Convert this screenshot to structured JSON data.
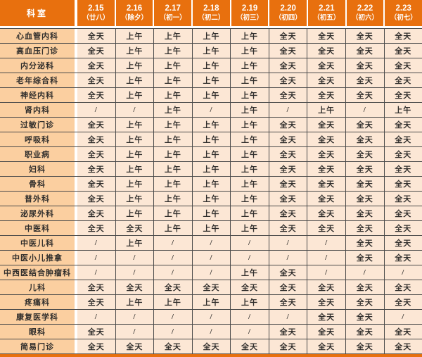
{
  "colors": {
    "header_bg": "#E8700E",
    "header_text": "#FFFFFF",
    "dept_bg": "#FBCFA0",
    "cell_bg": "#FCE7D5",
    "grid": "#4A4A4A",
    "text": "#302E2C"
  },
  "table": {
    "corner_header": "科室",
    "columns": [
      {
        "date": "2.15",
        "lunar": "（廿八）"
      },
      {
        "date": "2.16",
        "lunar": "（除夕）"
      },
      {
        "date": "2.17",
        "lunar": "（初一）"
      },
      {
        "date": "2.18",
        "lunar": "（初二）"
      },
      {
        "date": "2.19",
        "lunar": "（初三）"
      },
      {
        "date": "2.20",
        "lunar": "（初四）"
      },
      {
        "date": "2.21",
        "lunar": "（初五）"
      },
      {
        "date": "2.22",
        "lunar": "（初六）"
      },
      {
        "date": "2.23",
        "lunar": "（初七）"
      }
    ],
    "rows": [
      {
        "department": "心血管内科",
        "values": [
          "全天",
          "上午",
          "上午",
          "上午",
          "上午",
          "全天",
          "全天",
          "全天",
          "全天"
        ]
      },
      {
        "department": "高血压门诊",
        "values": [
          "全天",
          "上午",
          "上午",
          "上午",
          "上午",
          "全天",
          "全天",
          "全天",
          "全天"
        ]
      },
      {
        "department": "内分泌科",
        "values": [
          "全天",
          "上午",
          "上午",
          "上午",
          "上午",
          "全天",
          "全天",
          "全天",
          "全天"
        ]
      },
      {
        "department": "老年综合科",
        "values": [
          "全天",
          "上午",
          "上午",
          "上午",
          "上午",
          "全天",
          "全天",
          "全天",
          "全天"
        ]
      },
      {
        "department": "神经内科",
        "values": [
          "全天",
          "上午",
          "上午",
          "上午",
          "上午",
          "全天",
          "全天",
          "全天",
          "全天"
        ]
      },
      {
        "department": "肾内科",
        "values": [
          "/",
          "/",
          "上午",
          "/",
          "上午",
          "/",
          "上午",
          "/",
          "上午"
        ]
      },
      {
        "department": "过敏门诊",
        "values": [
          "全天",
          "上午",
          "上午",
          "上午",
          "上午",
          "全天",
          "全天",
          "全天",
          "全天"
        ]
      },
      {
        "department": "呼吸科",
        "values": [
          "全天",
          "上午",
          "上午",
          "上午",
          "上午",
          "全天",
          "全天",
          "全天",
          "全天"
        ]
      },
      {
        "department": "职业病",
        "values": [
          "全天",
          "上午",
          "上午",
          "上午",
          "上午",
          "全天",
          "全天",
          "全天",
          "全天"
        ]
      },
      {
        "department": "妇科",
        "values": [
          "全天",
          "上午",
          "上午",
          "上午",
          "上午",
          "全天",
          "全天",
          "全天",
          "全天"
        ]
      },
      {
        "department": "骨科",
        "values": [
          "全天",
          "上午",
          "上午",
          "上午",
          "上午",
          "全天",
          "全天",
          "全天",
          "全天"
        ]
      },
      {
        "department": "普外科",
        "values": [
          "全天",
          "上午",
          "上午",
          "上午",
          "上午",
          "全天",
          "全天",
          "全天",
          "全天"
        ]
      },
      {
        "department": "泌尿外科",
        "values": [
          "全天",
          "上午",
          "上午",
          "上午",
          "上午",
          "全天",
          "全天",
          "全天",
          "全天"
        ]
      },
      {
        "department": "中医科",
        "values": [
          "全天",
          "全天",
          "上午",
          "上午",
          "上午",
          "全天",
          "全天",
          "全天",
          "全天"
        ]
      },
      {
        "department": "中医儿科",
        "values": [
          "/",
          "上午",
          "/",
          "/",
          "/",
          "/",
          "/",
          "全天",
          "全天"
        ]
      },
      {
        "department": "中医小儿推拿",
        "values": [
          "/",
          "/",
          "/",
          "/",
          "/",
          "/",
          "/",
          "全天",
          "全天"
        ]
      },
      {
        "department": "中西医结合肿瘤科",
        "values": [
          "/",
          "/",
          "/",
          "/",
          "上午",
          "全天",
          "/",
          "/",
          "/"
        ]
      },
      {
        "department": "儿科",
        "values": [
          "全天",
          "全天",
          "全天",
          "全天",
          "全天",
          "全天",
          "全天",
          "全天",
          "全天"
        ]
      },
      {
        "department": "疼痛科",
        "values": [
          "全天",
          "上午",
          "上午",
          "上午",
          "上午",
          "全天",
          "全天",
          "全天",
          "全天"
        ]
      },
      {
        "department": "康复医学科",
        "values": [
          "/",
          "/",
          "/",
          "/",
          "/",
          "/",
          "全天",
          "全天",
          "/"
        ]
      },
      {
        "department": "眼科",
        "values": [
          "全天",
          "/",
          "/",
          "/",
          "/",
          "全天",
          "全天",
          "全天",
          "全天"
        ]
      },
      {
        "department": "简易门诊",
        "values": [
          "全天",
          "全天",
          "全天",
          "全天",
          "全天",
          "全天",
          "全天",
          "全天",
          "全天"
        ]
      }
    ]
  }
}
